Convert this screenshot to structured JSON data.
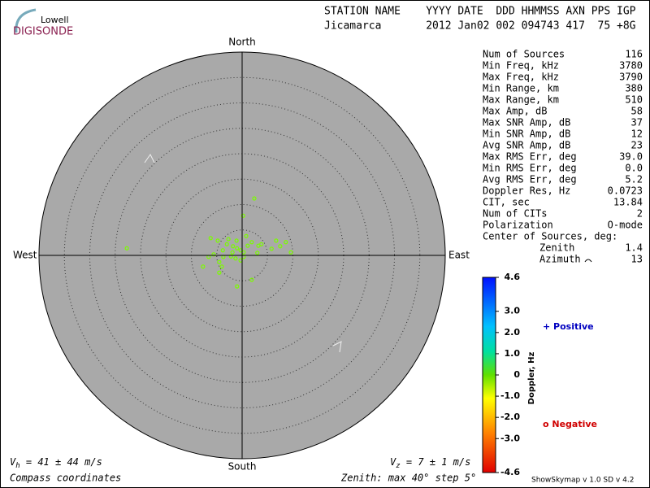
{
  "logo": {
    "top": "Lowell",
    "bottom": "DIGISONDE"
  },
  "header": {
    "line1": "STATION NAME    YYYY DATE  DDD HHMMSS AXN PPS IGP",
    "line2": "Jicamarca       2012 Jan02 002 094743 417  75 +8G"
  },
  "compass": {
    "north": "North",
    "south": "South",
    "east": "East",
    "west": "West"
  },
  "stats": {
    "rows": [
      [
        "Num of Sources",
        "116"
      ],
      [
        "Min Freq, kHz",
        "3780"
      ],
      [
        "Max Freq, kHz",
        "3790"
      ],
      [
        "Min Range, km",
        "380"
      ],
      [
        "Max Range, km",
        "510"
      ],
      [
        "Max Amp, dB",
        "58"
      ],
      [
        "Max SNR Amp, dB",
        "37"
      ],
      [
        "Min SNR Amp, dB",
        "12"
      ],
      [
        "Avg SNR Amp, dB",
        "23"
      ],
      [
        "Max RMS Err, deg",
        "39.0"
      ],
      [
        "Min RMS Err, deg",
        "0.0"
      ],
      [
        "Avg RMS Err, deg",
        "5.2"
      ],
      [
        "Doppler Res, Hz",
        "0.0723"
      ],
      [
        "CIT, sec",
        "13.84"
      ],
      [
        "Num of CITs",
        "2"
      ],
      [
        "Polarization",
        "O-mode"
      ]
    ],
    "center_title": "Center of Sources, deg:",
    "center_rows": [
      [
        "Zenith",
        "1.4"
      ],
      [
        "Azimuth",
        "13"
      ]
    ]
  },
  "skymap": {
    "type": "scatter",
    "rlim": 40,
    "rings": [
      5,
      10,
      15,
      20,
      25,
      30,
      35
    ],
    "color": "#7cfc00",
    "x": [
      2.4,
      0.2,
      -22.7,
      -7.7,
      -1.0,
      1.9,
      -4.5,
      -6.2,
      -4.8,
      -3.0,
      -1.8,
      -1.0,
      -0.3,
      0.3,
      1.1,
      1.9,
      3.2,
      3.8,
      6.7,
      8.6,
      9.6,
      5.8,
      7.5,
      -2.2,
      -1.3,
      -0.3,
      -5.6,
      -4.5,
      -3.7,
      0.3,
      0.8,
      -2.7,
      -6.6,
      -3.8,
      -1.1,
      -1.9,
      3.0,
      -4.0
    ],
    "y": [
      11.2,
      7.8,
      1.4,
      -2.2,
      -6.1,
      -4.8,
      -3.4,
      3.4,
      2.9,
      2.2,
      1.8,
      1.4,
      1.0,
      0.6,
      1.9,
      2.6,
      1.9,
      2.2,
      2.9,
      2.6,
      0.6,
      1.3,
      1.8,
      -0.2,
      -0.6,
      -1.0,
      0.2,
      -1.3,
      -0.3,
      -0.3,
      3.8,
      3.2,
      -0.3,
      1.0,
      2.9,
      0.6,
      0.5,
      -2.2
    ]
  },
  "colorbar": {
    "label": "Doppler, Hz",
    "lim": [
      -4.6,
      4.6
    ],
    "ticks": [
      4.6,
      {
        "value": 3.0,
        "label": "3.0"
      },
      {
        "value": 2.0,
        "label": "2.0"
      },
      {
        "value": 1.0,
        "label": "1.0"
      },
      0,
      {
        "value": -1.0,
        "label": "-1.0"
      },
      {
        "value": -2.0,
        "label": "-2.0"
      },
      {
        "value": -3.0,
        "label": "-3.0"
      },
      -4.6
    ],
    "positive": "+ Positive",
    "negative": "o Negative"
  },
  "footer": {
    "vh_sym": "V",
    "vh_sub": "h",
    "vh_text": " = 41 ± 44 m/s",
    "vz_sym": "V",
    "vz_sub": "z",
    "vz_text": " = 7 ± 1 m/s",
    "coords": "Compass coordinates",
    "zenith": "Zenith: max 40°  step 5°",
    "version": "ShowSkymap v 1.0  SD v 4.2"
  }
}
